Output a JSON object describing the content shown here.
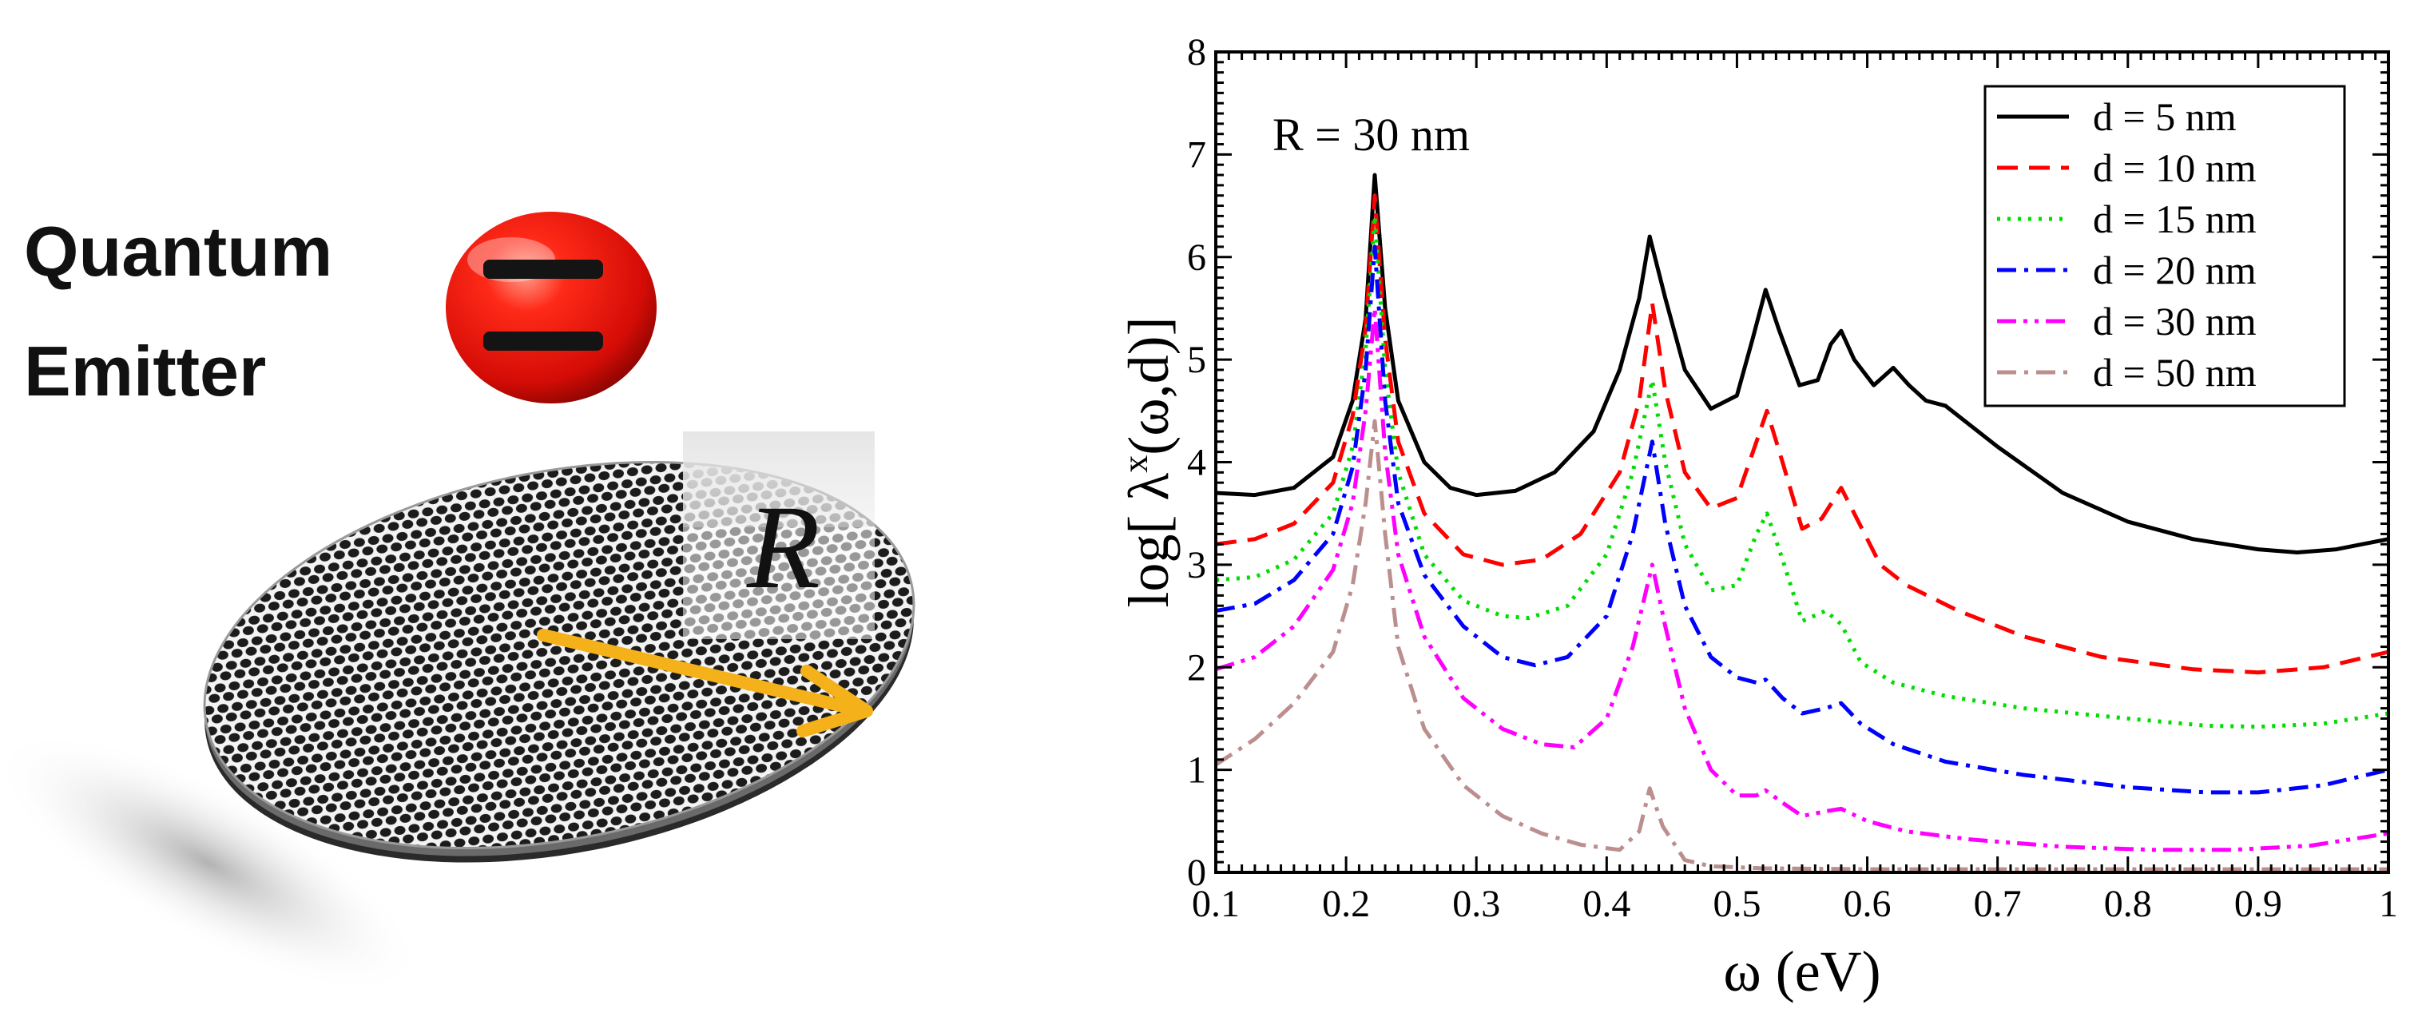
{
  "illustration": {
    "emitter_label_line1": "Quantum",
    "emitter_label_line2": "Emitter",
    "radius_symbol": "R",
    "emitter_color": "#e8150f",
    "arrow_color": "#f4b11a"
  },
  "chart_data": {
    "type": "line",
    "annotation": "R = 30 nm",
    "xlabel": "ω (eV)",
    "ylabel_prefix": "log[ λ",
    "ylabel_superscript": "x",
    "ylabel_suffix": "(ω,d)]",
    "xlim": [
      0.1,
      1.0
    ],
    "ylim": [
      0,
      8
    ],
    "x_ticks": [
      0.1,
      0.2,
      0.3,
      0.4,
      0.5,
      0.6,
      0.7,
      0.8,
      0.9,
      1.0
    ],
    "x_tick_labels": [
      "0.1",
      "0.2",
      "0.3",
      "0.4",
      "0.5",
      "0.6",
      "0.7",
      "0.8",
      "0.9",
      "1"
    ],
    "y_ticks": [
      0,
      1,
      2,
      3,
      4,
      5,
      6,
      7,
      8
    ],
    "y_tick_labels": [
      "0",
      "1",
      "2",
      "3",
      "4",
      "5",
      "6",
      "7",
      "8"
    ],
    "legend_position": "top-right",
    "grid": false,
    "series": [
      {
        "name": "d = 5 nm",
        "color": "#000000",
        "dash": "solid",
        "points": [
          [
            0.1,
            3.7
          ],
          [
            0.13,
            3.68
          ],
          [
            0.16,
            3.75
          ],
          [
            0.19,
            4.05
          ],
          [
            0.205,
            4.6
          ],
          [
            0.215,
            5.4
          ],
          [
            0.222,
            6.8
          ],
          [
            0.23,
            5.5
          ],
          [
            0.24,
            4.6
          ],
          [
            0.26,
            4.0
          ],
          [
            0.28,
            3.75
          ],
          [
            0.3,
            3.68
          ],
          [
            0.33,
            3.72
          ],
          [
            0.36,
            3.9
          ],
          [
            0.39,
            4.3
          ],
          [
            0.41,
            4.9
          ],
          [
            0.425,
            5.6
          ],
          [
            0.433,
            6.2
          ],
          [
            0.445,
            5.6
          ],
          [
            0.46,
            4.9
          ],
          [
            0.48,
            4.52
          ],
          [
            0.5,
            4.65
          ],
          [
            0.512,
            5.2
          ],
          [
            0.522,
            5.68
          ],
          [
            0.532,
            5.3
          ],
          [
            0.548,
            4.75
          ],
          [
            0.562,
            4.8
          ],
          [
            0.572,
            5.15
          ],
          [
            0.58,
            5.28
          ],
          [
            0.59,
            5.0
          ],
          [
            0.605,
            4.75
          ],
          [
            0.62,
            4.92
          ],
          [
            0.632,
            4.75
          ],
          [
            0.645,
            4.6
          ],
          [
            0.66,
            4.55
          ],
          [
            0.7,
            4.15
          ],
          [
            0.75,
            3.7
          ],
          [
            0.8,
            3.42
          ],
          [
            0.85,
            3.25
          ],
          [
            0.9,
            3.15
          ],
          [
            0.93,
            3.12
          ],
          [
            0.96,
            3.15
          ],
          [
            1.0,
            3.25
          ]
        ]
      },
      {
        "name": "d = 10 nm",
        "color": "#ff0000",
        "dash": "dashed",
        "points": [
          [
            0.1,
            3.2
          ],
          [
            0.13,
            3.25
          ],
          [
            0.16,
            3.4
          ],
          [
            0.19,
            3.8
          ],
          [
            0.205,
            4.45
          ],
          [
            0.215,
            5.3
          ],
          [
            0.222,
            6.6
          ],
          [
            0.23,
            5.2
          ],
          [
            0.24,
            4.2
          ],
          [
            0.26,
            3.5
          ],
          [
            0.29,
            3.1
          ],
          [
            0.32,
            3.0
          ],
          [
            0.35,
            3.05
          ],
          [
            0.38,
            3.3
          ],
          [
            0.41,
            3.9
          ],
          [
            0.425,
            4.6
          ],
          [
            0.435,
            5.55
          ],
          [
            0.445,
            4.7
          ],
          [
            0.46,
            3.9
          ],
          [
            0.48,
            3.55
          ],
          [
            0.5,
            3.65
          ],
          [
            0.515,
            4.2
          ],
          [
            0.523,
            4.5
          ],
          [
            0.535,
            4.0
          ],
          [
            0.55,
            3.35
          ],
          [
            0.565,
            3.45
          ],
          [
            0.58,
            3.75
          ],
          [
            0.592,
            3.45
          ],
          [
            0.61,
            3.0
          ],
          [
            0.63,
            2.8
          ],
          [
            0.67,
            2.55
          ],
          [
            0.72,
            2.3
          ],
          [
            0.78,
            2.1
          ],
          [
            0.85,
            1.98
          ],
          [
            0.9,
            1.95
          ],
          [
            0.95,
            2.0
          ],
          [
            1.0,
            2.15
          ]
        ]
      },
      {
        "name": "d = 15 nm",
        "color": "#00dd00",
        "dash": "dotted",
        "points": [
          [
            0.1,
            2.85
          ],
          [
            0.13,
            2.88
          ],
          [
            0.16,
            3.05
          ],
          [
            0.19,
            3.5
          ],
          [
            0.205,
            4.15
          ],
          [
            0.215,
            5.1
          ],
          [
            0.222,
            6.4
          ],
          [
            0.23,
            4.9
          ],
          [
            0.24,
            3.9
          ],
          [
            0.26,
            3.1
          ],
          [
            0.29,
            2.65
          ],
          [
            0.32,
            2.5
          ],
          [
            0.34,
            2.48
          ],
          [
            0.37,
            2.6
          ],
          [
            0.4,
            3.1
          ],
          [
            0.42,
            3.9
          ],
          [
            0.435,
            4.8
          ],
          [
            0.445,
            4.0
          ],
          [
            0.46,
            3.2
          ],
          [
            0.48,
            2.75
          ],
          [
            0.5,
            2.8
          ],
          [
            0.515,
            3.3
          ],
          [
            0.523,
            3.5
          ],
          [
            0.535,
            3.05
          ],
          [
            0.55,
            2.45
          ],
          [
            0.568,
            2.55
          ],
          [
            0.58,
            2.42
          ],
          [
            0.595,
            2.05
          ],
          [
            0.62,
            1.85
          ],
          [
            0.66,
            1.72
          ],
          [
            0.72,
            1.6
          ],
          [
            0.8,
            1.5
          ],
          [
            0.86,
            1.43
          ],
          [
            0.9,
            1.42
          ],
          [
            0.95,
            1.45
          ],
          [
            1.0,
            1.55
          ]
        ]
      },
      {
        "name": "d = 20 nm",
        "color": "#0000ff",
        "dash": "dashdot",
        "points": [
          [
            0.1,
            2.55
          ],
          [
            0.13,
            2.62
          ],
          [
            0.16,
            2.85
          ],
          [
            0.19,
            3.3
          ],
          [
            0.205,
            3.95
          ],
          [
            0.215,
            4.9
          ],
          [
            0.222,
            6.1
          ],
          [
            0.23,
            4.6
          ],
          [
            0.24,
            3.6
          ],
          [
            0.26,
            2.9
          ],
          [
            0.29,
            2.4
          ],
          [
            0.32,
            2.1
          ],
          [
            0.345,
            2.02
          ],
          [
            0.37,
            2.1
          ],
          [
            0.4,
            2.5
          ],
          [
            0.42,
            3.3
          ],
          [
            0.435,
            4.2
          ],
          [
            0.445,
            3.4
          ],
          [
            0.46,
            2.6
          ],
          [
            0.48,
            2.1
          ],
          [
            0.5,
            1.9
          ],
          [
            0.515,
            1.85
          ],
          [
            0.522,
            1.88
          ],
          [
            0.535,
            1.7
          ],
          [
            0.55,
            1.55
          ],
          [
            0.568,
            1.6
          ],
          [
            0.58,
            1.65
          ],
          [
            0.595,
            1.45
          ],
          [
            0.62,
            1.25
          ],
          [
            0.66,
            1.08
          ],
          [
            0.72,
            0.95
          ],
          [
            0.8,
            0.83
          ],
          [
            0.86,
            0.78
          ],
          [
            0.9,
            0.78
          ],
          [
            0.95,
            0.85
          ],
          [
            1.0,
            1.0
          ]
        ]
      },
      {
        "name": "d = 30 nm",
        "color": "#ff00ff",
        "dash": "dashdotdot",
        "points": [
          [
            0.1,
            1.98
          ],
          [
            0.13,
            2.1
          ],
          [
            0.16,
            2.4
          ],
          [
            0.19,
            2.95
          ],
          [
            0.205,
            3.6
          ],
          [
            0.215,
            4.5
          ],
          [
            0.222,
            5.5
          ],
          [
            0.23,
            4.1
          ],
          [
            0.24,
            3.1
          ],
          [
            0.26,
            2.3
          ],
          [
            0.29,
            1.7
          ],
          [
            0.32,
            1.4
          ],
          [
            0.35,
            1.25
          ],
          [
            0.375,
            1.22
          ],
          [
            0.4,
            1.5
          ],
          [
            0.42,
            2.2
          ],
          [
            0.435,
            3.0
          ],
          [
            0.445,
            2.4
          ],
          [
            0.46,
            1.6
          ],
          [
            0.48,
            1.0
          ],
          [
            0.5,
            0.75
          ],
          [
            0.515,
            0.75
          ],
          [
            0.522,
            0.8
          ],
          [
            0.535,
            0.68
          ],
          [
            0.55,
            0.55
          ],
          [
            0.57,
            0.6
          ],
          [
            0.58,
            0.62
          ],
          [
            0.6,
            0.5
          ],
          [
            0.63,
            0.4
          ],
          [
            0.68,
            0.32
          ],
          [
            0.75,
            0.25
          ],
          [
            0.82,
            0.22
          ],
          [
            0.88,
            0.22
          ],
          [
            0.94,
            0.26
          ],
          [
            1.0,
            0.38
          ]
        ]
      },
      {
        "name": "d = 50 nm",
        "color": "#bc8f8f",
        "dash": "dashdot",
        "points": [
          [
            0.1,
            1.05
          ],
          [
            0.13,
            1.3
          ],
          [
            0.16,
            1.65
          ],
          [
            0.19,
            2.15
          ],
          [
            0.205,
            2.8
          ],
          [
            0.215,
            3.6
          ],
          [
            0.222,
            4.4
          ],
          [
            0.23,
            3.3
          ],
          [
            0.24,
            2.2
          ],
          [
            0.26,
            1.4
          ],
          [
            0.29,
            0.85
          ],
          [
            0.32,
            0.55
          ],
          [
            0.35,
            0.38
          ],
          [
            0.38,
            0.27
          ],
          [
            0.41,
            0.22
          ],
          [
            0.425,
            0.4
          ],
          [
            0.433,
            0.82
          ],
          [
            0.443,
            0.45
          ],
          [
            0.46,
            0.12
          ],
          [
            0.48,
            0.06
          ],
          [
            0.52,
            0.04
          ],
          [
            0.6,
            0.03
          ],
          [
            0.7,
            0.03
          ],
          [
            0.8,
            0.03
          ],
          [
            0.9,
            0.03
          ],
          [
            1.0,
            0.03
          ]
        ]
      }
    ]
  }
}
